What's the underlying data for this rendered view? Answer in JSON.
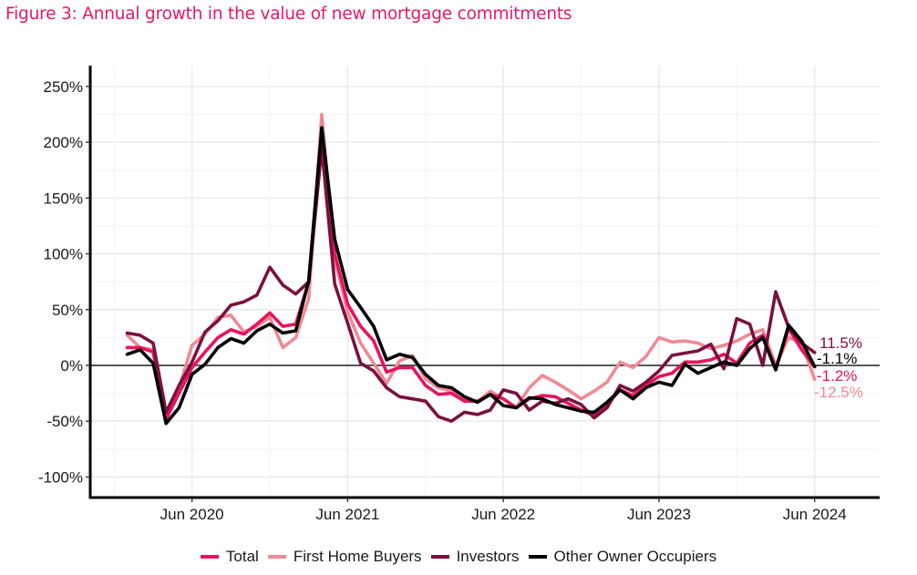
{
  "title": "Figure 3:  Annual growth in the value of new mortgage commitments",
  "chart_data": {
    "type": "line",
    "title": "Figure 3:  Annual growth in the value of new mortgage commitments",
    "xlabel": "",
    "ylabel": "",
    "ylim": [
      -120,
      265
    ],
    "y_ticks": [
      -100,
      -50,
      0,
      50,
      100,
      150,
      200,
      250
    ],
    "y_tick_labels": [
      "-100%",
      "-50%",
      "0%",
      "50%",
      "100%",
      "150%",
      "200%",
      "250%"
    ],
    "x_ticks": [
      "2020-06",
      "2021-06",
      "2022-06",
      "2023-06",
      "2024-06"
    ],
    "x_tick_labels": [
      "Jun 2020",
      "Jun 2021",
      "Jun 2022",
      "Jun 2023",
      "Jun 2024"
    ],
    "x_start": "2019-11",
    "x": [
      "2020-01",
      "2020-02",
      "2020-03",
      "2020-04",
      "2020-05",
      "2020-06",
      "2020-07",
      "2020-08",
      "2020-09",
      "2020-10",
      "2020-11",
      "2020-12",
      "2021-01",
      "2021-02",
      "2021-03",
      "2021-04",
      "2021-05",
      "2021-06",
      "2021-07",
      "2021-08",
      "2021-09",
      "2021-10",
      "2021-11",
      "2021-12",
      "2022-01",
      "2022-02",
      "2022-03",
      "2022-04",
      "2022-05",
      "2022-06",
      "2022-07",
      "2022-08",
      "2022-09",
      "2022-10",
      "2022-11",
      "2022-12",
      "2023-01",
      "2023-02",
      "2023-03",
      "2023-04",
      "2023-05",
      "2023-06",
      "2023-07",
      "2023-08",
      "2023-09",
      "2023-10",
      "2023-11",
      "2023-12",
      "2024-01",
      "2024-02",
      "2024-03",
      "2024-04",
      "2024-05",
      "2024-06"
    ],
    "grid": true,
    "legend_position": "bottom",
    "series": [
      {
        "name": "Total",
        "color": "#e8135f",
        "values": [
          16,
          16,
          12,
          -48,
          -25,
          -2,
          12,
          25,
          32,
          28,
          37,
          47,
          35,
          37,
          75,
          205,
          100,
          55,
          35,
          22,
          -6,
          -2,
          -2,
          -18,
          -26,
          -25,
          -32,
          -32,
          -26,
          -30,
          -38,
          -30,
          -27,
          -28,
          -34,
          -40,
          -45,
          -35,
          -22,
          -27,
          -18,
          -10,
          -7,
          3,
          3,
          5,
          10,
          2,
          20,
          27,
          -3,
          33,
          14,
          -1.2
        ]
      },
      {
        "name": "First Home Buyers",
        "color": "#f08a93",
        "values": [
          27,
          16,
          14,
          -44,
          -20,
          18,
          28,
          43,
          45,
          30,
          35,
          43,
          16,
          25,
          60,
          225,
          95,
          48,
          20,
          2,
          -16,
          4,
          9,
          -12,
          -20,
          -23,
          -30,
          -33,
          -23,
          -30,
          -38,
          -20,
          -9,
          -15,
          -22,
          -30,
          -23,
          -15,
          3,
          -2,
          8,
          25,
          21,
          22,
          20,
          15,
          18,
          22,
          28,
          32,
          0,
          25,
          20,
          -12.5
        ]
      },
      {
        "name": "Investors",
        "color": "#7a1140",
        "values": [
          29,
          27,
          20,
          -42,
          -18,
          3,
          30,
          40,
          54,
          57,
          63,
          88,
          72,
          64,
          75,
          195,
          73,
          38,
          2,
          -5,
          -20,
          -28,
          -30,
          -32,
          -46,
          -50,
          -42,
          -44,
          -40,
          -22,
          -25,
          -40,
          -32,
          -34,
          -30,
          -35,
          -47,
          -38,
          -18,
          -23,
          -15,
          -5,
          9,
          11,
          13,
          19,
          -3,
          42,
          37,
          0,
          66,
          34,
          20,
          11.5
        ]
      },
      {
        "name": "Other Owner Occupiers",
        "color": "#000000",
        "values": [
          10,
          14,
          2,
          -52,
          -38,
          -8,
          1,
          16,
          24,
          20,
          31,
          37,
          29,
          31,
          76,
          213,
          113,
          68,
          52,
          35,
          5,
          10,
          7,
          -8,
          -18,
          -20,
          -28,
          -33,
          -26,
          -36,
          -38,
          -29,
          -30,
          -35,
          -38,
          -41,
          -42,
          -33,
          -22,
          -30,
          -20,
          -15,
          -18,
          1,
          -7,
          -2,
          3,
          0,
          15,
          25,
          -4,
          36,
          22,
          -1.1
        ]
      }
    ],
    "end_labels": [
      {
        "series": "Investors",
        "text": "11.5%",
        "color": "#7a1140"
      },
      {
        "series": "Other Owner Occupiers",
        "text": "-1.1%",
        "color": "#000000"
      },
      {
        "series": "Total",
        "text": "-1.2%",
        "color": "#e8135f"
      },
      {
        "series": "First Home Buyers",
        "text": "-12.5%",
        "color": "#f08a93"
      }
    ]
  },
  "legend": [
    {
      "label": "Total",
      "color": "#e8135f"
    },
    {
      "label": "First Home Buyers",
      "color": "#f08a93"
    },
    {
      "label": "Investors",
      "color": "#7a1140"
    },
    {
      "label": "Other Owner Occupiers",
      "color": "#000000"
    }
  ]
}
